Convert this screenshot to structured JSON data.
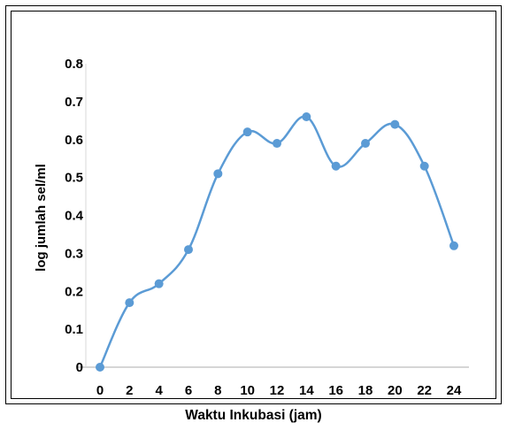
{
  "chart_data": {
    "type": "line",
    "smooth": true,
    "title": "",
    "xlabel": "Waktu Inkubasi (jam)",
    "ylabel": "log jumlah sel/ml",
    "x": [
      0,
      2,
      4,
      6,
      8,
      10,
      12,
      14,
      16,
      18,
      20,
      22,
      24
    ],
    "x_tick_labels": [
      "0",
      "2",
      "4",
      "6",
      "8",
      "10",
      "12",
      "14",
      "16",
      "18",
      "20",
      "22",
      "24"
    ],
    "y_tick_labels": [
      "0",
      "0.1",
      "0.2",
      "0.3",
      "0.4",
      "0.5",
      "0.6",
      "0.7",
      "0.8"
    ],
    "ylim": [
      0,
      0.8
    ],
    "grid": false,
    "legend": "none",
    "series": [
      {
        "color": "#5b9bd5",
        "values": [
          0.0,
          0.17,
          0.22,
          0.31,
          0.51,
          0.62,
          0.59,
          0.66,
          0.53,
          0.59,
          0.64,
          0.53,
          0.32
        ]
      }
    ]
  }
}
